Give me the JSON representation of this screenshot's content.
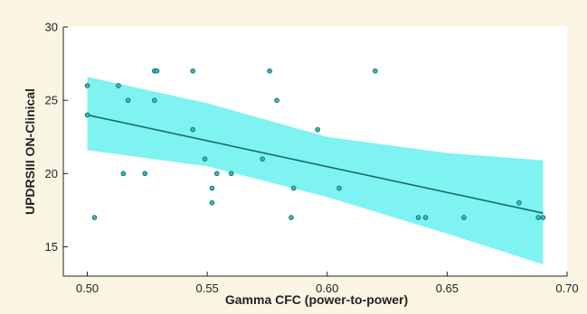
{
  "colors": {
    "page_background": "#fbf6e4",
    "plot_background": "#ffffff",
    "confidence_band": "#7ff2f2",
    "regression_line": "#1a6b6b",
    "point_fill": "#2bbcbc",
    "point_stroke": "#1a5a5a",
    "axis": "#222222"
  },
  "chart_data": {
    "type": "scatter",
    "title": "",
    "xlabel": "Gamma CFC (power-to-power)",
    "ylabel": "UPDRSIII ON-Clinical",
    "xlim": [
      0.49,
      0.7
    ],
    "ylim": [
      13,
      30
    ],
    "xticks": [
      "0.50",
      "0.55",
      "0.60",
      "0.65",
      "0.70"
    ],
    "yticks": [
      "15",
      "20",
      "25",
      "30"
    ],
    "grid": false,
    "legend": "none",
    "points": [
      {
        "x": 0.5,
        "y": 26
      },
      {
        "x": 0.5,
        "y": 24
      },
      {
        "x": 0.503,
        "y": 17
      },
      {
        "x": 0.513,
        "y": 26
      },
      {
        "x": 0.515,
        "y": 20
      },
      {
        "x": 0.517,
        "y": 25
      },
      {
        "x": 0.524,
        "y": 20
      },
      {
        "x": 0.528,
        "y": 27
      },
      {
        "x": 0.529,
        "y": 27
      },
      {
        "x": 0.528,
        "y": 25
      },
      {
        "x": 0.544,
        "y": 27
      },
      {
        "x": 0.544,
        "y": 23
      },
      {
        "x": 0.549,
        "y": 21
      },
      {
        "x": 0.552,
        "y": 19
      },
      {
        "x": 0.552,
        "y": 18
      },
      {
        "x": 0.554,
        "y": 20
      },
      {
        "x": 0.56,
        "y": 20
      },
      {
        "x": 0.573,
        "y": 21
      },
      {
        "x": 0.576,
        "y": 27
      },
      {
        "x": 0.579,
        "y": 25
      },
      {
        "x": 0.585,
        "y": 17
      },
      {
        "x": 0.586,
        "y": 19
      },
      {
        "x": 0.596,
        "y": 23
      },
      {
        "x": 0.605,
        "y": 19
      },
      {
        "x": 0.62,
        "y": 27
      },
      {
        "x": 0.638,
        "y": 17
      },
      {
        "x": 0.641,
        "y": 17
      },
      {
        "x": 0.657,
        "y": 17
      },
      {
        "x": 0.68,
        "y": 18
      },
      {
        "x": 0.688,
        "y": 17
      },
      {
        "x": 0.69,
        "y": 17
      }
    ],
    "fit_line": {
      "x": [
        0.5,
        0.69
      ],
      "y": [
        24.0,
        17.3
      ]
    },
    "confidence_band": {
      "x": [
        0.5,
        0.55,
        0.6,
        0.65,
        0.69
      ],
      "upper": [
        26.6,
        24.8,
        22.5,
        21.4,
        20.9
      ],
      "lower": [
        21.6,
        20.5,
        18.4,
        15.9,
        13.8
      ]
    }
  }
}
